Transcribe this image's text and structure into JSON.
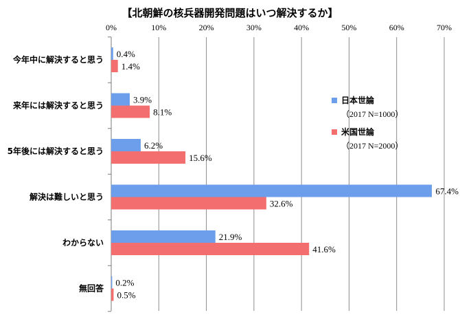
{
  "chart_data": {
    "type": "bar",
    "orientation": "horizontal",
    "title": "【北朝鮮の核兵器開発問題はいつ解決するか】",
    "xlabel": "",
    "ylabel": "",
    "xlim": [
      0,
      70
    ],
    "x_ticks": [
      "0%",
      "10%",
      "20%",
      "30%",
      "40%",
      "50%",
      "60%",
      "70%"
    ],
    "categories": [
      "今年中に解決すると思う",
      "来年には解決すると思う",
      "5年後には解決すると思う",
      "解決は難しいと思う",
      "わからない",
      "無回答"
    ],
    "series": [
      {
        "name": "日本世論",
        "note": "（2017 N=1000）",
        "color": "#6d9eeb",
        "values": [
          0.4,
          3.9,
          6.2,
          67.4,
          21.9,
          0.2
        ],
        "labels": [
          "0.4%",
          "3.9%",
          "6.2%",
          "67.4%",
          "21.9%",
          "0.2%"
        ]
      },
      {
        "name": "米国世論",
        "note": "（2017 N=2000）",
        "color": "#f36f6f",
        "values": [
          1.4,
          8.1,
          15.6,
          32.6,
          41.6,
          0.5
        ],
        "labels": [
          "1.4%",
          "8.1%",
          "15.6%",
          "32.6%",
          "41.6%",
          "0.5%"
        ]
      }
    ],
    "grid": true,
    "legend_position": "right"
  }
}
